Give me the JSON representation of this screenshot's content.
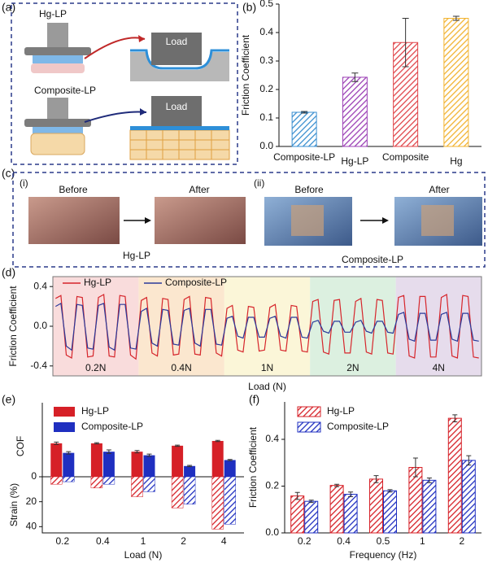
{
  "panel_labels": [
    "(a)",
    "(b)",
    "(c)",
    "(d)",
    "(e)",
    "(f)"
  ],
  "schematic": {
    "top_label": "Hg-LP",
    "top_load": "Load",
    "bottom_label": "Composite-LP",
    "bottom_load": "Load"
  },
  "photos": {
    "left": {
      "tag": "(i)",
      "before": "Before",
      "after": "After",
      "caption": "Hg-LP"
    },
    "right": {
      "tag": "(ii)",
      "before": "Before",
      "after": "After",
      "caption": "Composite-LP"
    }
  },
  "chart_data": [
    {
      "type": "bar",
      "ylabel": "Friction Coefficient",
      "categories": [
        "Composite-LP",
        "Hg-LP",
        "Composite",
        "Hg"
      ],
      "values": [
        0.12,
        0.243,
        0.365,
        0.45
      ],
      "errors": [
        0.003,
        0.015,
        0.085,
        0.007
      ],
      "colors": [
        "#3a8fd0",
        "#9b3fb5",
        "#e0454a",
        "#f2b330"
      ],
      "hatch": true,
      "ylim": [
        0,
        0.5
      ],
      "yticks": [
        {
          "value": 0,
          "label": "0.0"
        },
        0.1,
        0.2,
        0.3,
        0.4,
        0.5
      ]
    },
    {
      "type": "line",
      "ylabel": "Friction Coefficient",
      "xlabel": "Load (N)",
      "legend": "top-left",
      "regions": [
        {
          "label": "0.2N",
          "color": "#f9dcdc"
        },
        {
          "label": "0.4N",
          "color": "#fbe7cf"
        },
        {
          "label": "1N",
          "color": "#fbf6d8"
        },
        {
          "label": "2N",
          "color": "#dcf0e0"
        },
        {
          "label": "4N",
          "color": "#e6dcec"
        }
      ],
      "ylim": [
        -0.5,
        0.5
      ],
      "yticks": [
        -0.4,
        {
          "value": 0,
          "label": "0.0"
        },
        0.4
      ],
      "series": [
        {
          "name": "Hg-LP",
          "color": "#d6252b",
          "values": [
            0.28,
            0.31,
            -0.29,
            -0.32,
            0.3,
            0.29,
            -0.31,
            -0.3,
            0.29,
            0.32,
            -0.3,
            -0.31,
            0.31,
            0.3,
            -0.29,
            -0.33,
            0.26,
            0.29,
            -0.27,
            -0.3,
            0.28,
            0.27,
            -0.29,
            -0.28,
            0.27,
            0.3,
            -0.28,
            -0.29,
            0.29,
            0.28,
            -0.27,
            -0.3,
            0.18,
            0.21,
            -0.24,
            -0.26,
            0.2,
            0.19,
            -0.25,
            -0.24,
            0.19,
            0.22,
            -0.24,
            -0.25,
            0.21,
            0.2,
            -0.25,
            -0.26,
            0.25,
            0.27,
            -0.26,
            -0.28,
            0.26,
            0.27,
            -0.27,
            -0.27,
            0.25,
            0.28,
            -0.26,
            -0.28,
            0.27,
            0.26,
            -0.27,
            -0.28,
            0.29,
            0.31,
            -0.3,
            -0.32,
            0.3,
            0.3,
            -0.31,
            -0.31,
            0.29,
            0.32,
            -0.3,
            -0.32,
            0.31,
            0.3,
            -0.31,
            -0.32
          ]
        },
        {
          "name": "Composite-LP",
          "color": "#2a3a9a",
          "values": [
            0.2,
            0.23,
            -0.2,
            -0.24,
            0.22,
            0.21,
            -0.22,
            -0.23,
            0.21,
            0.23,
            -0.21,
            -0.24,
            0.22,
            0.22,
            -0.22,
            -0.23,
            0.15,
            0.18,
            -0.17,
            -0.2,
            0.17,
            0.16,
            -0.18,
            -0.19,
            0.16,
            0.18,
            -0.17,
            -0.2,
            0.17,
            0.17,
            -0.18,
            -0.19,
            0.08,
            0.1,
            -0.1,
            -0.12,
            0.09,
            0.09,
            -0.11,
            -0.11,
            0.08,
            0.1,
            -0.1,
            -0.12,
            0.09,
            0.09,
            -0.11,
            -0.12,
            0.04,
            0.06,
            -0.05,
            -0.07,
            0.05,
            0.05,
            -0.06,
            -0.06,
            0.04,
            0.06,
            -0.05,
            -0.07,
            0.05,
            0.05,
            -0.06,
            -0.07,
            0.12,
            0.14,
            -0.13,
            -0.15,
            0.13,
            0.13,
            -0.14,
            -0.14,
            0.12,
            0.14,
            -0.13,
            -0.15,
            0.13,
            0.13,
            -0.14,
            -0.15
          ]
        }
      ]
    },
    {
      "type": "mirror",
      "ylabel": "COF",
      "y2label": "Strain (%)",
      "xlabel": "Load (N)",
      "legend": "top-left",
      "categories": [
        "0.2",
        "0.4",
        "1",
        "2",
        "4"
      ],
      "ylim": [
        0,
        0.62
      ],
      "y2lim": [
        0,
        45
      ],
      "y2ticks": [
        0,
        20,
        40
      ],
      "series": [
        {
          "name": "Hg-LP",
          "color": "#d62027",
          "values": [
            0.28,
            0.28,
            0.21,
            0.26,
            0.3
          ],
          "errors": [
            0.01,
            0.005,
            0.01,
            0.005,
            0.005
          ],
          "strain": [
            6,
            9,
            16,
            25,
            42
          ]
        },
        {
          "name": "Composite-LP",
          "color": "#1f2fc0",
          "values": [
            0.2,
            0.21,
            0.18,
            0.09,
            0.14
          ],
          "errors": [
            0.01,
            0.015,
            0.01,
            0.005,
            0.005
          ],
          "strain": [
            4,
            6,
            12,
            22,
            38
          ]
        }
      ]
    },
    {
      "type": "groupbar",
      "ylabel": "Friction Coefficient",
      "xlabel": "Frequency (Hz)",
      "legend": "top-left",
      "hatch": true,
      "categories": [
        "0.2",
        "0.4",
        "0.5",
        "1",
        "2"
      ],
      "ylim": [
        0,
        0.56
      ],
      "yticks": [
        {
          "value": 0,
          "label": "0.0"
        },
        0.2,
        0.4
      ],
      "series": [
        {
          "name": "Hg-LP",
          "color": "#d62027",
          "values": [
            0.158,
            0.203,
            0.23,
            0.28,
            0.49
          ],
          "errors": [
            0.015,
            0.005,
            0.015,
            0.04,
            0.015
          ]
        },
        {
          "name": "Composite-LP",
          "color": "#1f2fc0",
          "values": [
            0.135,
            0.165,
            0.18,
            0.225,
            0.31
          ],
          "errors": [
            0.005,
            0.01,
            0.005,
            0.01,
            0.02
          ]
        }
      ]
    }
  ]
}
